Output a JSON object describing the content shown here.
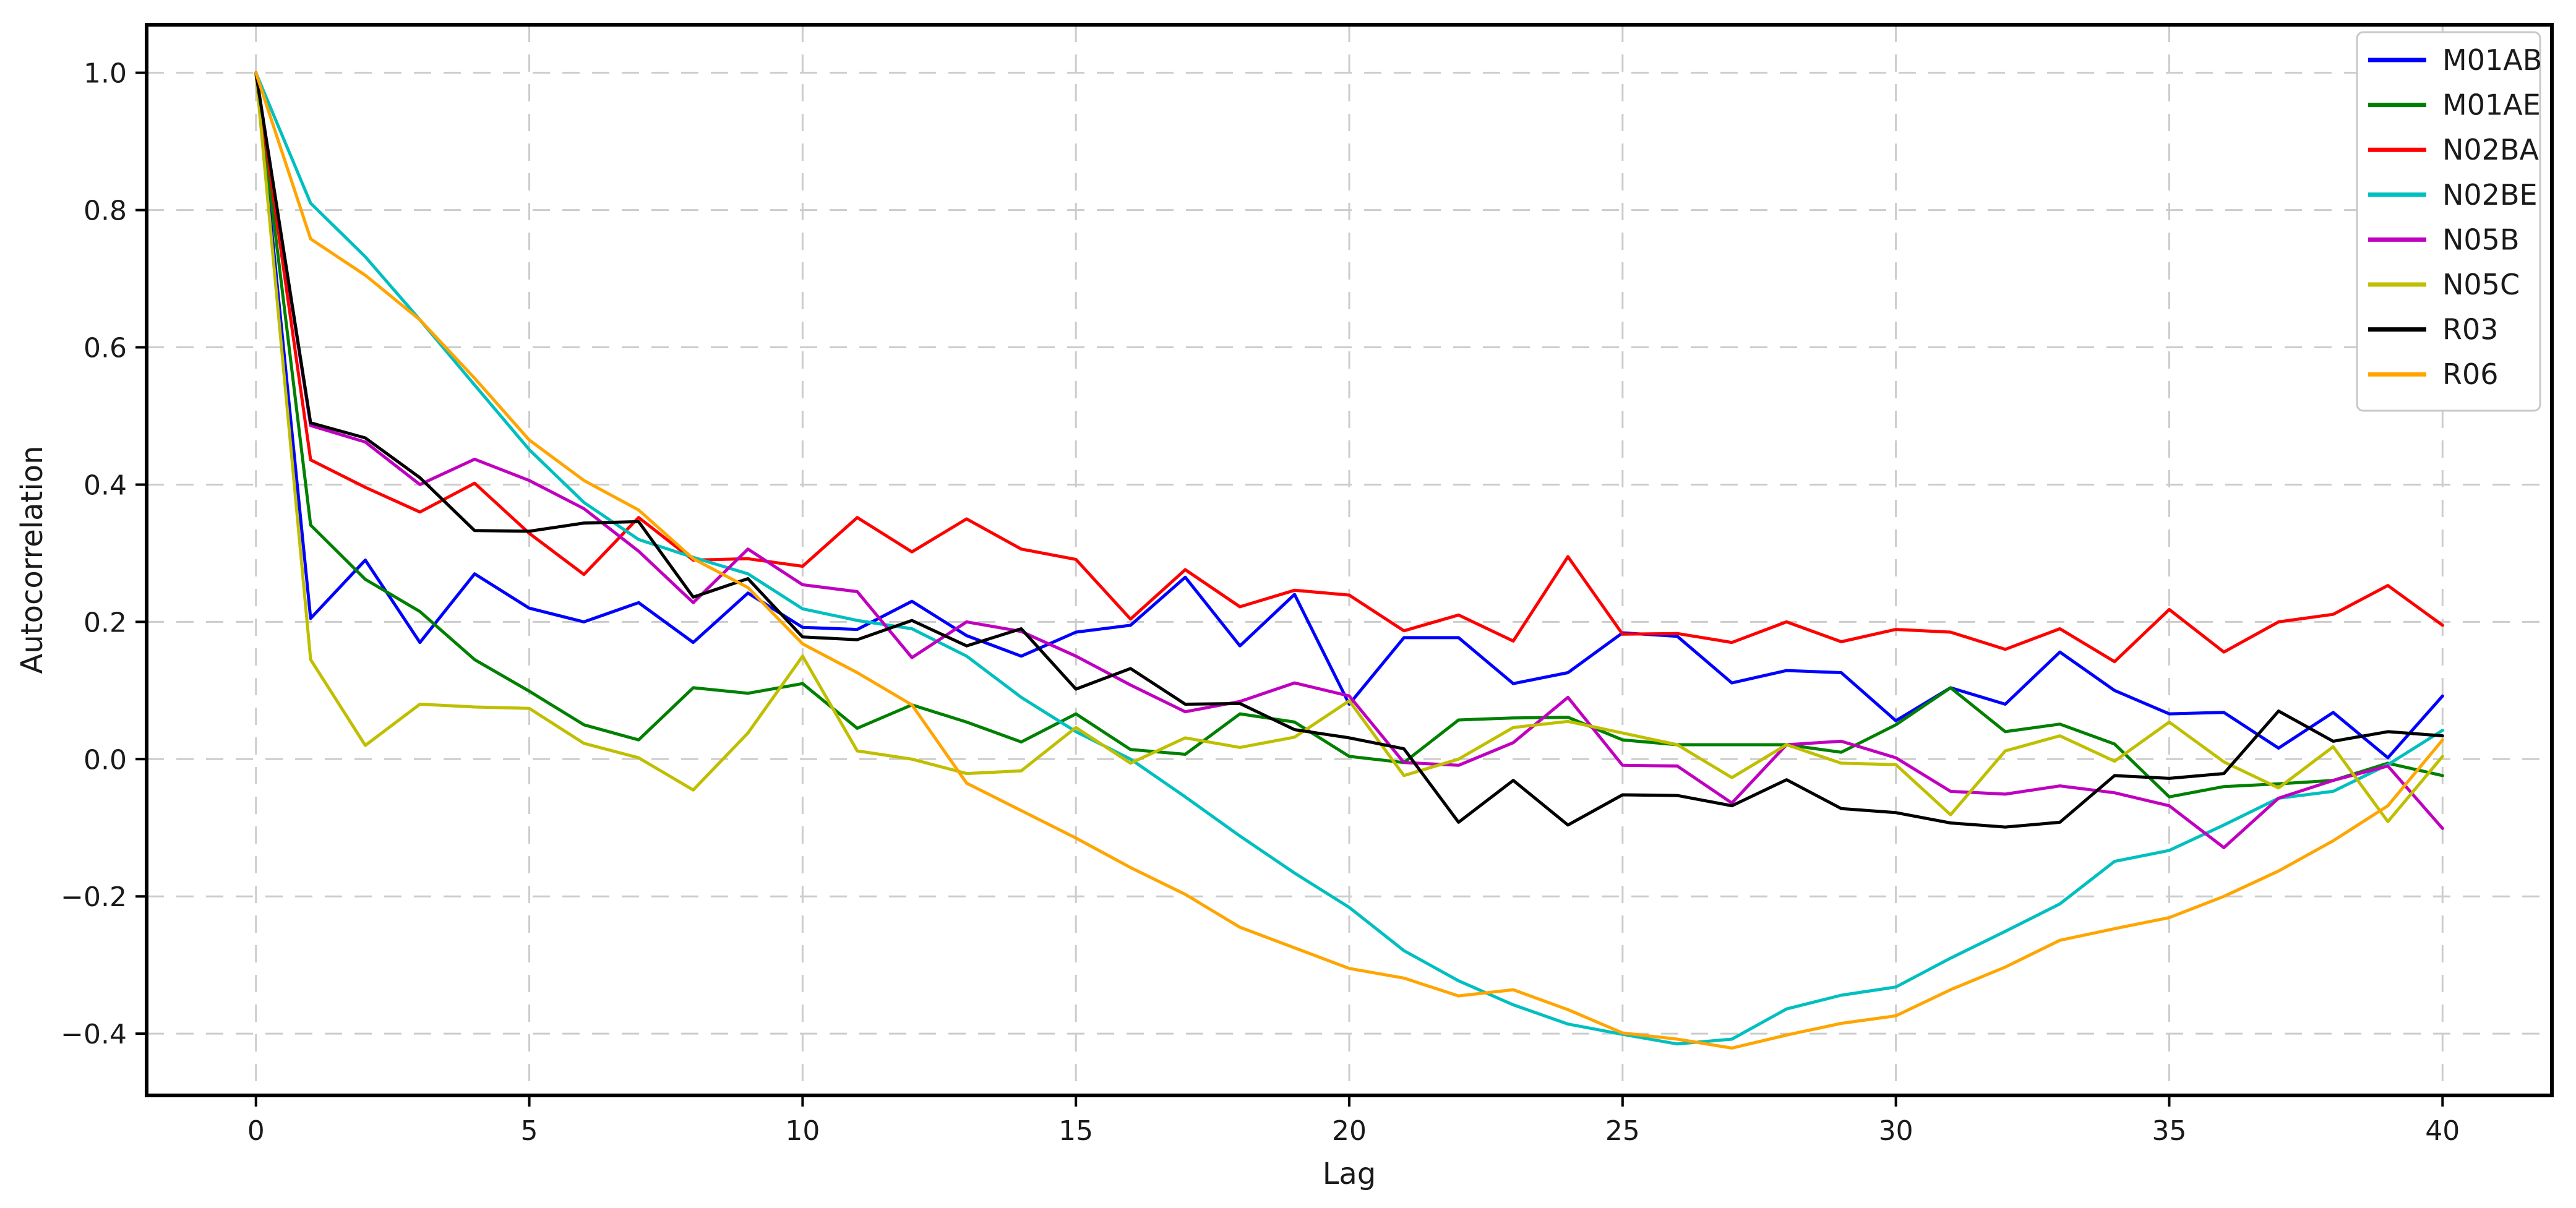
{
  "chart_data": {
    "type": "line",
    "title": "",
    "xlabel": "Lag",
    "ylabel": "Autocorrelation",
    "xlim": [
      -2,
      42
    ],
    "ylim": [
      -0.49,
      1.07
    ],
    "xticks": [
      0,
      5,
      10,
      15,
      20,
      25,
      30,
      35,
      40
    ],
    "xticklabels": [
      "0",
      "5",
      "10",
      "15",
      "20",
      "25",
      "30",
      "35",
      "40"
    ],
    "yticks": [
      -0.4,
      -0.2,
      0.0,
      0.2,
      0.4,
      0.6,
      0.8,
      1.0
    ],
    "yticklabels": [
      "−0.4",
      "−0.2",
      "0.0",
      "0.2",
      "0.4",
      "0.6",
      "0.8",
      "1.0"
    ],
    "grid": true,
    "grid_color": "#cccccc",
    "legend_position": "upper right",
    "x": [
      0,
      1,
      2,
      3,
      4,
      5,
      6,
      7,
      8,
      9,
      10,
      11,
      12,
      13,
      14,
      15,
      16,
      17,
      18,
      19,
      20,
      21,
      22,
      23,
      24,
      25,
      26,
      27,
      28,
      29,
      30,
      31,
      32,
      33,
      34,
      35,
      36,
      37,
      38,
      39,
      40
    ],
    "series": [
      {
        "name": "M01AB",
        "color": "#0000ff",
        "values": [
          1.0,
          0.205,
          0.29,
          0.17,
          0.27,
          0.22,
          0.2,
          0.228,
          0.17,
          0.242,
          0.192,
          0.189,
          0.23,
          0.18,
          0.15,
          0.185,
          0.195,
          0.265,
          0.165,
          0.24,
          0.08,
          0.177,
          0.177,
          0.11,
          0.126,
          0.184,
          0.179,
          0.111,
          0.129,
          0.126,
          0.056,
          0.104,
          0.08,
          0.156,
          0.1,
          0.066,
          0.068,
          0.016,
          0.068,
          0.002,
          0.092
        ]
      },
      {
        "name": "M01AE",
        "color": "#008000",
        "values": [
          1.0,
          0.341,
          0.262,
          0.215,
          0.145,
          0.099,
          0.05,
          0.028,
          0.104,
          0.096,
          0.11,
          0.045,
          0.079,
          0.054,
          0.025,
          0.066,
          0.014,
          0.007,
          0.066,
          0.054,
          0.004,
          -0.005,
          0.057,
          0.06,
          0.061,
          0.028,
          0.021,
          0.021,
          0.021,
          0.01,
          0.05,
          0.104,
          0.04,
          0.051,
          0.022,
          -0.055,
          -0.04,
          -0.036,
          -0.031,
          -0.006,
          -0.024
        ]
      },
      {
        "name": "N02BA",
        "color": "#ff0000",
        "values": [
          1.0,
          0.436,
          0.396,
          0.36,
          0.402,
          0.329,
          0.269,
          0.352,
          0.29,
          0.292,
          0.281,
          0.352,
          0.302,
          0.35,
          0.306,
          0.291,
          0.204,
          0.276,
          0.222,
          0.246,
          0.239,
          0.187,
          0.21,
          0.172,
          0.295,
          0.182,
          0.183,
          0.17,
          0.2,
          0.171,
          0.189,
          0.185,
          0.16,
          0.19,
          0.142,
          0.218,
          0.156,
          0.2,
          0.211,
          0.253,
          0.195
        ]
      },
      {
        "name": "N02BE",
        "color": "#00bfbf",
        "values": [
          1.0,
          0.81,
          0.732,
          0.64,
          0.545,
          0.451,
          0.374,
          0.32,
          0.294,
          0.27,
          0.219,
          0.202,
          0.19,
          0.15,
          0.09,
          0.04,
          0.0,
          -0.055,
          -0.112,
          -0.166,
          -0.216,
          -0.279,
          -0.323,
          -0.358,
          -0.386,
          -0.401,
          -0.415,
          -0.408,
          -0.364,
          -0.344,
          -0.332,
          -0.29,
          -0.251,
          -0.211,
          -0.149,
          -0.133,
          -0.096,
          -0.057,
          -0.047,
          -0.008,
          0.042
        ]
      },
      {
        "name": "N05B",
        "color": "#bf00bf",
        "values": [
          1.0,
          0.486,
          0.462,
          0.4,
          0.437,
          0.406,
          0.365,
          0.303,
          0.228,
          0.306,
          0.254,
          0.244,
          0.148,
          0.2,
          0.186,
          0.15,
          0.108,
          0.069,
          0.084,
          0.111,
          0.092,
          -0.005,
          -0.009,
          0.024,
          0.09,
          -0.009,
          -0.01,
          -0.064,
          0.021,
          0.026,
          0.002,
          -0.047,
          -0.051,
          -0.039,
          -0.049,
          -0.068,
          -0.129,
          -0.057,
          -0.031,
          -0.01,
          -0.101
        ]
      },
      {
        "name": "N05C",
        "color": "#bfbf00",
        "values": [
          1.0,
          0.145,
          0.02,
          0.08,
          0.076,
          0.074,
          0.023,
          0.002,
          -0.045,
          0.038,
          0.15,
          0.012,
          0.0,
          -0.021,
          -0.017,
          0.046,
          -0.006,
          0.031,
          0.017,
          0.032,
          0.085,
          -0.024,
          0.0,
          0.046,
          0.055,
          0.038,
          0.021,
          -0.027,
          0.021,
          -0.006,
          -0.008,
          -0.081,
          0.012,
          0.034,
          -0.003,
          0.054,
          -0.004,
          -0.042,
          0.018,
          -0.091,
          0.004
        ]
      },
      {
        "name": "R03",
        "color": "#000000",
        "values": [
          1.0,
          0.49,
          0.468,
          0.41,
          0.333,
          0.332,
          0.344,
          0.346,
          0.236,
          0.263,
          0.178,
          0.174,
          0.202,
          0.165,
          0.19,
          0.102,
          0.132,
          0.08,
          0.081,
          0.043,
          0.031,
          0.015,
          -0.092,
          -0.031,
          -0.096,
          -0.052,
          -0.053,
          -0.068,
          -0.03,
          -0.072,
          -0.078,
          -0.093,
          -0.099,
          -0.092,
          -0.024,
          -0.028,
          -0.021,
          0.07,
          0.026,
          0.04,
          0.034
        ]
      },
      {
        "name": "R06",
        "color": "#ffa500",
        "values": [
          1.0,
          0.758,
          0.705,
          0.64,
          0.555,
          0.465,
          0.406,
          0.363,
          0.292,
          0.25,
          0.168,
          0.126,
          0.079,
          -0.035,
          -0.075,
          -0.115,
          -0.158,
          -0.197,
          -0.245,
          -0.275,
          -0.305,
          -0.319,
          -0.345,
          -0.336,
          -0.365,
          -0.399,
          -0.408,
          -0.421,
          -0.402,
          -0.385,
          -0.374,
          -0.336,
          -0.303,
          -0.264,
          -0.247,
          -0.231,
          -0.2,
          -0.163,
          -0.119,
          -0.068,
          0.028
        ]
      }
    ]
  }
}
